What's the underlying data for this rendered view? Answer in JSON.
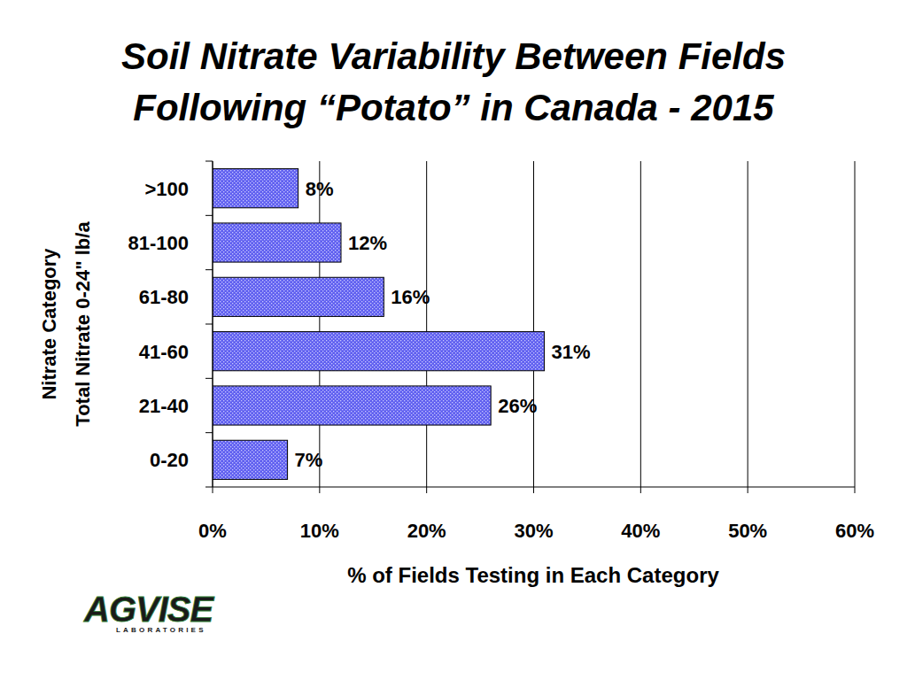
{
  "chart_data": {
    "type": "bar",
    "orientation": "horizontal",
    "title": [
      "Soil Nitrate Variability Between Fields",
      "Following “Potato” in Canada - 2015"
    ],
    "ylabel": [
      "Nitrate Category",
      "Total Nitrate 0-24\" lb/a"
    ],
    "xlabel": "% of Fields Testing in Each Category",
    "categories": [
      "0-20",
      "21-40",
      "41-60",
      "61-80",
      "81-100",
      ">100"
    ],
    "values": [
      7,
      26,
      31,
      16,
      12,
      8
    ],
    "value_labels": [
      "7%",
      "26%",
      "31%",
      "16%",
      "12%",
      "8%"
    ],
    "data_labels": true,
    "color": "#6060f0",
    "xlim": [
      0,
      60
    ],
    "xticks": [
      {
        "value": 0,
        "label": "0%"
      },
      {
        "value": 10,
        "label": "10%"
      },
      {
        "value": 20,
        "label": "20%"
      },
      {
        "value": 30,
        "label": "30%"
      },
      {
        "value": 40,
        "label": "40%"
      },
      {
        "value": 50,
        "label": "50%"
      },
      {
        "value": 60,
        "label": "60%"
      }
    ],
    "grid": true,
    "logo": "AGVISE",
    "logo_subtitle": "LABORATORIES"
  }
}
